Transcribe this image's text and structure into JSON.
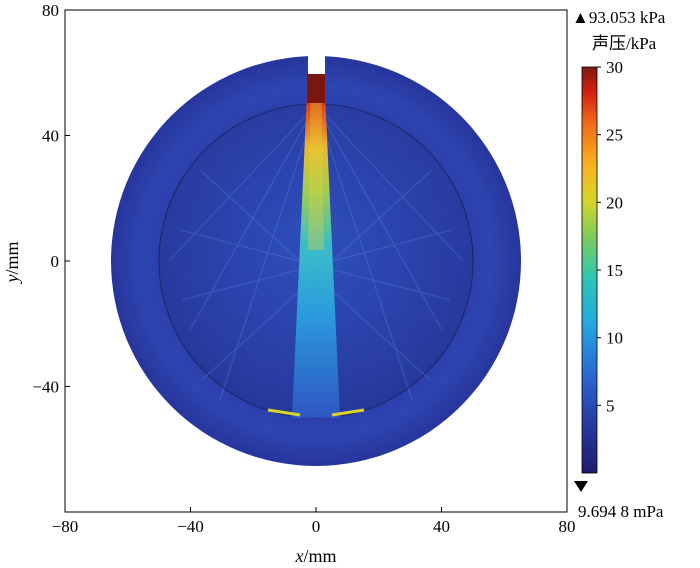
{
  "chart_data": {
    "type": "heatmap",
    "title": "",
    "xlabel": {
      "var": "x",
      "unit": "/mm"
    },
    "ylabel": {
      "var": "y",
      "unit": "/mm"
    },
    "xlim": [
      -80,
      80
    ],
    "ylim": [
      -80,
      80
    ],
    "xticks": [
      "−80",
      "−40",
      "0",
      "40",
      "80"
    ],
    "xtick_values": [
      -80,
      -40,
      0,
      40,
      80
    ],
    "yticks": [
      "80",
      "40",
      "0",
      "−40"
    ],
    "ytick_values": [
      80,
      40,
      0,
      -40
    ],
    "field": {
      "quantity": "acoustic pressure",
      "outer_radius_mm": 65,
      "inner_radius_mm": 50,
      "source_at_top": {
        "x_mm": 0,
        "y_mm": 60
      },
      "focus_beam_toward": {
        "x_mm": 0,
        "y_mm": -50
      }
    },
    "colorbar": {
      "label": "声压/kPa",
      "max_marker": "▲93.053 kPa",
      "min_marker": "9.694 8 mPa",
      "ticks": [
        "30",
        "25",
        "20",
        "15",
        "10",
        "5"
      ],
      "tick_values": [
        30,
        25,
        20,
        15,
        10,
        5
      ],
      "range": [
        0,
        30
      ],
      "colormap": "jet"
    }
  }
}
